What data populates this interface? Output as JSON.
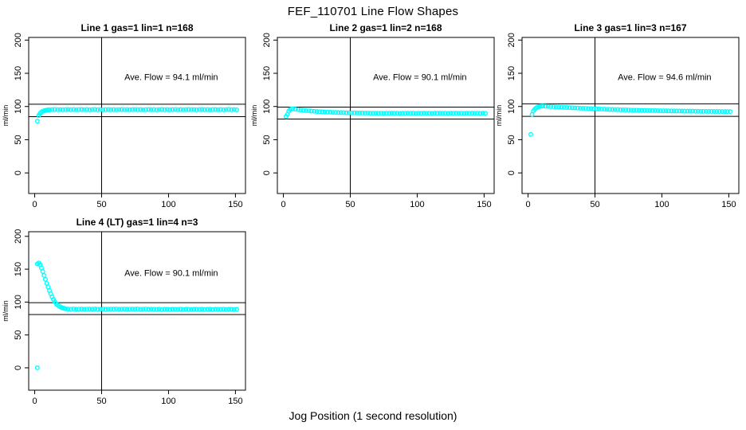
{
  "figure": {
    "title": "FEF_110701  Line Flow Shapes",
    "xlabel": "Jog Position (1 second resolution)",
    "background_color": "#FFFFFF",
    "point_color": "#00FFFF",
    "axis_color": "#000000"
  },
  "chart_data": [
    {
      "type": "scatter",
      "title": "Line 1 gas=1 lin=1 n=168",
      "annotation": "Ave. Flow =  94.1  ml/min",
      "ave_flow_ml_min": 94.1,
      "ylabel": "ml/min",
      "x_ticks": [
        0,
        50,
        100,
        150
      ],
      "y_ticks": [
        0,
        50,
        100,
        150,
        200
      ],
      "xlim": [
        -4.5,
        157.5
      ],
      "ylim": [
        -31,
        204
      ],
      "hlines": [
        103.5,
        84.7
      ],
      "vline": 50,
      "annotation_pos": [
        102,
        140
      ],
      "points": [
        [
          2,
          78
        ],
        [
          3,
          86.5
        ],
        [
          4,
          89.5
        ],
        [
          5,
          91.5
        ],
        [
          6,
          92.8
        ],
        [
          7,
          93.6
        ],
        [
          8,
          94.2
        ],
        [
          9,
          94.6
        ],
        [
          10,
          94.9
        ],
        [
          11,
          95.1
        ]
      ],
      "tail": {
        "x_start": 13,
        "x_step": 2,
        "y": [
          95.3,
          95.5,
          95.2,
          95.4,
          95.1,
          95.3,
          95.5,
          95.2,
          95.4,
          95.1,
          95.3,
          95.5,
          95.2,
          95.4,
          95.1,
          95.3,
          95.5,
          95.2,
          95.4,
          95.1,
          95.3,
          95.5,
          95.2,
          95.4,
          95.1,
          95.3,
          95.5,
          95.2,
          95.4,
          95.1,
          95.3,
          95.5,
          95.2,
          95.4,
          95.1,
          95.3,
          95.5,
          95.2,
          95.4,
          95.1,
          95.3,
          95.5,
          95.2,
          95.4,
          95.1,
          95.3,
          95.5,
          95.2,
          95.4,
          95.1,
          95.3,
          95.5,
          95.2,
          95.4,
          95.1,
          95.3,
          95.5,
          95.2,
          95.4,
          95.1,
          95.3,
          95.5,
          95.2,
          95.4,
          95.1,
          95.3,
          95.5,
          95.2,
          95.4,
          95.1
        ]
      }
    },
    {
      "type": "scatter",
      "title": "Line 2 gas=1 lin=2 n=168",
      "annotation": "Ave. Flow =  90.1  ml/min",
      "ave_flow_ml_min": 90.1,
      "ylabel": "ml/min",
      "x_ticks": [
        0,
        50,
        100,
        150
      ],
      "y_ticks": [
        0,
        50,
        100,
        150,
        200
      ],
      "xlim": [
        -4.5,
        157.5
      ],
      "ylim": [
        -31,
        204
      ],
      "hlines": [
        99.1,
        81.1
      ],
      "vline": 50,
      "annotation_pos": [
        102,
        140
      ],
      "points": [
        [
          2,
          85
        ],
        [
          3,
          88
        ],
        [
          4,
          93
        ],
        [
          5,
          95.5
        ],
        [
          6,
          96.3
        ],
        [
          7,
          96.5
        ]
      ],
      "tail": {
        "x_start": 9,
        "x_step": 2,
        "y": [
          95.9,
          95.3,
          94.8,
          94.3,
          93.9,
          93.5,
          93.1,
          92.8,
          92.5,
          92.2,
          92.0,
          91.8,
          91.6,
          91.4,
          91.2,
          91.1,
          90.9,
          90.8,
          90.7,
          90.6,
          90.5,
          90.4,
          90.4,
          90.3,
          90.2,
          90.2,
          90.1,
          90.1,
          90.0,
          90.0,
          89.9,
          89.8,
          90.0,
          89.7,
          89.9,
          89.8,
          89.9,
          89.8,
          90.0,
          89.7,
          89.9,
          89.8,
          89.9,
          89.8,
          90.0,
          89.7,
          89.9,
          89.8,
          89.9,
          89.8,
          90.0,
          89.7,
          89.9,
          89.8,
          89.9,
          89.8,
          90.0,
          89.7,
          89.9,
          89.8,
          89.9,
          89.8,
          90.0,
          89.7,
          89.9,
          89.8,
          89.9,
          89.8,
          90.0,
          89.7,
          89.9,
          89.8
        ]
      }
    },
    {
      "type": "scatter",
      "title": "Line 3 gas=1 lin=3 n=167",
      "annotation": "Ave. Flow =  94.6  ml/min",
      "ave_flow_ml_min": 94.6,
      "ylabel": "ml/min",
      "x_ticks": [
        0,
        50,
        100,
        150
      ],
      "y_ticks": [
        0,
        50,
        100,
        150,
        200
      ],
      "xlim": [
        -4.5,
        157.5
      ],
      "ylim": [
        -31,
        204
      ],
      "hlines": [
        104.1,
        85.1
      ],
      "vline": 50,
      "annotation_pos": [
        102,
        140
      ],
      "points": [
        [
          2,
          58
        ],
        [
          3,
          88
        ],
        [
          4,
          93.5
        ],
        [
          5,
          96
        ],
        [
          6,
          97.8
        ],
        [
          7,
          99
        ],
        [
          8,
          99.8
        ],
        [
          9,
          100.3
        ],
        [
          10,
          100.6
        ],
        [
          11,
          100.7
        ]
      ],
      "tail": {
        "x_start": 13,
        "x_step": 2,
        "y": [
          100.4,
          100.2,
          99.9,
          99.7,
          99.4,
          99.2,
          99.0,
          98.7,
          98.5,
          98.3,
          98.1,
          97.9,
          97.7,
          97.5,
          97.3,
          97.1,
          97.0,
          96.8,
          96.6,
          96.5,
          96.3,
          96.1,
          96.0,
          95.8,
          95.7,
          95.5,
          95.4,
          95.3,
          95.1,
          95.0,
          94.9,
          94.8,
          94.6,
          94.5,
          94.4,
          94.3,
          94.2,
          94.1,
          94.0,
          93.9,
          93.9,
          93.8,
          93.7,
          93.6,
          93.5,
          93.5,
          93.4,
          93.3,
          93.3,
          93.2,
          93.2,
          93.1,
          93.0,
          93.0,
          92.9,
          92.9,
          92.8,
          92.8,
          92.7,
          92.7,
          92.7,
          92.6,
          92.6,
          92.5,
          92.5,
          92.5,
          92.4,
          92.4,
          92.4,
          92.3
        ]
      }
    },
    {
      "type": "scatter",
      "title": "Line 4 (LT) gas=1 lin=4 n=3",
      "annotation": "Ave. Flow =  90.1  ml/min",
      "ave_flow_ml_min": 90.1,
      "ylabel": "ml/min",
      "x_ticks": [
        0,
        50,
        100,
        150
      ],
      "y_ticks": [
        0,
        50,
        100,
        150,
        200
      ],
      "xlim": [
        -4.5,
        157.5
      ],
      "ylim": [
        -34,
        207
      ],
      "hlines": [
        99.1,
        81.1
      ],
      "vline": 50,
      "annotation_pos": [
        102,
        140
      ],
      "points": [
        [
          2,
          0
        ],
        [
          2,
          158
        ],
        [
          3,
          159.5
        ],
        [
          4,
          157
        ],
        [
          5,
          152
        ],
        [
          6,
          146.5
        ],
        [
          7,
          140.5
        ],
        [
          8,
          134.5
        ],
        [
          9,
          128.5
        ],
        [
          10,
          123
        ],
        [
          11,
          117.5
        ],
        [
          12,
          112.5
        ],
        [
          13,
          108
        ],
        [
          14,
          104
        ],
        [
          15,
          100.5
        ],
        [
          16,
          98
        ],
        [
          17,
          95.8
        ],
        [
          18,
          94.2
        ],
        [
          19,
          92.8
        ],
        [
          20,
          91.8
        ],
        [
          21,
          91
        ],
        [
          22,
          90.4
        ],
        [
          23,
          89.9
        ]
      ],
      "tail": {
        "x_start": 25,
        "x_step": 2,
        "y": [
          89.4,
          89.2,
          89.5,
          89.1,
          89.3,
          89.4,
          89.0,
          89.3,
          89.4,
          89.2,
          89.5,
          89.1,
          89.3,
          89.4,
          89.0,
          89.3,
          89.4,
          89.2,
          89.5,
          89.1,
          89.3,
          89.4,
          89.0,
          89.3,
          89.4,
          89.2,
          89.5,
          89.1,
          89.3,
          89.4,
          89.0,
          89.3,
          89.1,
          88.9,
          89.2,
          88.8,
          89.0,
          89.1,
          88.7,
          89.0,
          89.1,
          88.9,
          89.2,
          88.8,
          89.0,
          89.1,
          88.7,
          89.0,
          89.1,
          88.9,
          89.2,
          88.8,
          89.0,
          89.1,
          88.7,
          89.0,
          89.1,
          88.9,
          89.2,
          88.8,
          89.0,
          89.1,
          88.7,
          89.0
        ]
      }
    }
  ]
}
